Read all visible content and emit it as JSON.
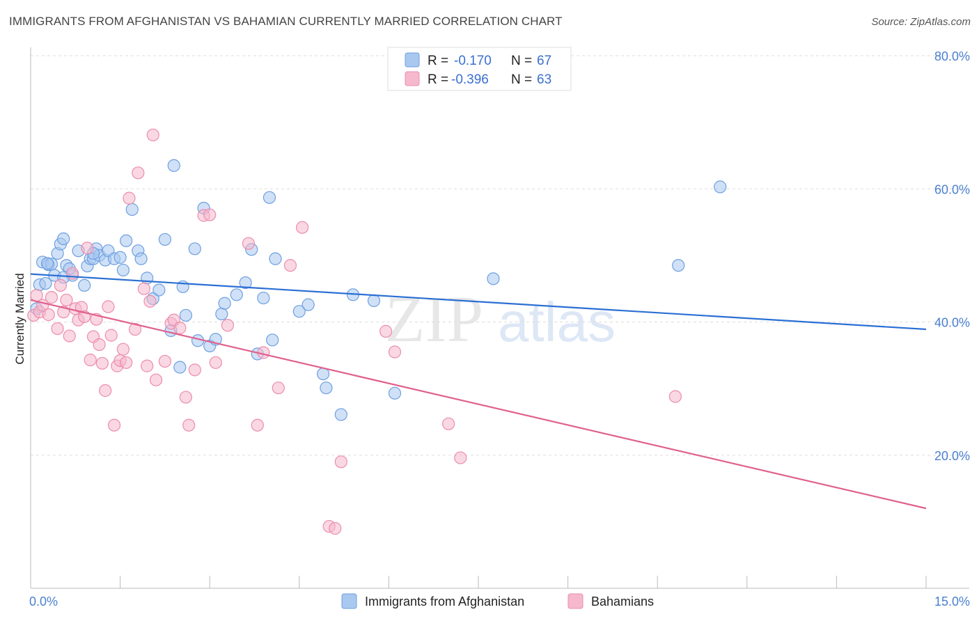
{
  "title": "IMMIGRANTS FROM AFGHANISTAN VS BAHAMIAN CURRENTLY MARRIED CORRELATION CHART",
  "source": "Source: ZipAtlas.com",
  "watermark": {
    "zip": "ZIP",
    "atlas": "atlas"
  },
  "colors": {
    "blue_fill": "#a9c8f0",
    "blue_stroke": "#6d9fe0",
    "blue_line": "#2b6fd4",
    "pink_fill": "#f6b8cc",
    "pink_stroke": "#ec8cab",
    "pink_line": "#e0608e",
    "tick_text": "#4a7fd0",
    "grid": "#dddddd"
  },
  "legend": {
    "rows": [
      {
        "r_label": "R = ",
        "r_value": "-0.170",
        "n_label": "N = ",
        "n_value": "67",
        "series": "blue"
      },
      {
        "r_label": "R = ",
        "r_value": "-0.396",
        "n_label": "N = ",
        "n_value": "63",
        "series": "pink"
      }
    ]
  },
  "chart_data": {
    "type": "scatter",
    "title": "IMMIGRANTS FROM AFGHANISTAN VS BAHAMIAN CURRENTLY MARRIED CORRELATION CHART",
    "xlabel": "",
    "ylabel": "Currently Married",
    "xlim": [
      0,
      15
    ],
    "ylim": [
      0,
      80
    ],
    "x_tick_labels": [
      {
        "value": 0,
        "label": "0.0%"
      },
      {
        "value": 15,
        "label": "15.0%"
      }
    ],
    "y_tick_labels": [
      {
        "value": 20,
        "label": "20.0%"
      },
      {
        "value": 40,
        "label": "40.0%"
      },
      {
        "value": 60,
        "label": "60.0%"
      },
      {
        "value": 80,
        "label": "80.0%"
      }
    ],
    "series": [
      {
        "name": "Immigrants from Afghanistan",
        "color": "blue",
        "trend": {
          "x0": 0,
          "y0": 47.2,
          "x1": 15,
          "y1": 38.9
        },
        "points": [
          [
            0.15,
            45.6
          ],
          [
            0.2,
            49.0
          ],
          [
            0.25,
            45.8
          ],
          [
            0.3,
            48.6
          ],
          [
            0.35,
            48.7
          ],
          [
            0.4,
            47.0
          ],
          [
            0.45,
            50.3
          ],
          [
            0.5,
            51.7
          ],
          [
            0.55,
            52.5
          ],
          [
            0.6,
            48.5
          ],
          [
            0.7,
            47.0
          ],
          [
            0.8,
            50.7
          ],
          [
            0.9,
            45.5
          ],
          [
            0.95,
            48.4
          ],
          [
            1.0,
            49.5
          ],
          [
            1.05,
            49.5
          ],
          [
            1.1,
            51.0
          ],
          [
            1.15,
            50.0
          ],
          [
            1.25,
            49.3
          ],
          [
            1.3,
            50.7
          ],
          [
            1.4,
            49.5
          ],
          [
            1.5,
            49.7
          ],
          [
            1.55,
            47.8
          ],
          [
            1.6,
            52.2
          ],
          [
            1.7,
            56.9
          ],
          [
            1.8,
            50.7
          ],
          [
            1.85,
            49.5
          ],
          [
            1.95,
            46.6
          ],
          [
            2.05,
            43.5
          ],
          [
            2.15,
            44.8
          ],
          [
            2.25,
            52.4
          ],
          [
            2.35,
            38.7
          ],
          [
            2.4,
            63.5
          ],
          [
            2.5,
            33.2
          ],
          [
            2.55,
            45.3
          ],
          [
            2.6,
            41.0
          ],
          [
            2.75,
            51.0
          ],
          [
            2.9,
            57.1
          ],
          [
            3.0,
            36.4
          ],
          [
            3.1,
            37.4
          ],
          [
            3.2,
            41.2
          ],
          [
            3.25,
            42.8
          ],
          [
            3.45,
            44.1
          ],
          [
            3.6,
            45.9
          ],
          [
            3.7,
            50.9
          ],
          [
            3.8,
            35.2
          ],
          [
            3.9,
            43.6
          ],
          [
            4.0,
            58.7
          ],
          [
            4.05,
            37.3
          ],
          [
            4.1,
            49.5
          ],
          [
            4.5,
            41.6
          ],
          [
            4.65,
            42.6
          ],
          [
            4.9,
            32.2
          ],
          [
            4.95,
            30.1
          ],
          [
            5.2,
            26.1
          ],
          [
            5.4,
            44.1
          ],
          [
            5.75,
            43.2
          ],
          [
            6.1,
            29.3
          ],
          [
            7.75,
            46.5
          ],
          [
            10.85,
            48.5
          ],
          [
            11.55,
            60.3
          ],
          [
            0.1,
            42.0
          ],
          [
            0.28,
            48.8
          ],
          [
            0.65,
            48.0
          ],
          [
            1.05,
            50.3
          ],
          [
            2.8,
            37.2
          ],
          [
            0.55,
            46.7
          ]
        ]
      },
      {
        "name": "Bahamians",
        "color": "pink",
        "trend": {
          "x0": 0,
          "y0": 43.3,
          "x1": 15,
          "y1": 12.0
        },
        "points": [
          [
            0.05,
            41.0
          ],
          [
            0.1,
            44.0
          ],
          [
            0.15,
            41.5
          ],
          [
            0.2,
            42.5
          ],
          [
            0.3,
            41.1
          ],
          [
            0.35,
            43.7
          ],
          [
            0.45,
            39.0
          ],
          [
            0.5,
            45.5
          ],
          [
            0.55,
            41.5
          ],
          [
            0.6,
            43.3
          ],
          [
            0.65,
            37.9
          ],
          [
            0.7,
            47.3
          ],
          [
            0.75,
            42.0
          ],
          [
            0.8,
            40.3
          ],
          [
            0.85,
            42.2
          ],
          [
            0.9,
            40.8
          ],
          [
            0.95,
            51.1
          ],
          [
            1.0,
            34.3
          ],
          [
            1.05,
            37.8
          ],
          [
            1.1,
            40.4
          ],
          [
            1.15,
            36.6
          ],
          [
            1.2,
            33.8
          ],
          [
            1.25,
            29.7
          ],
          [
            1.3,
            42.3
          ],
          [
            1.35,
            38.0
          ],
          [
            1.4,
            24.5
          ],
          [
            1.45,
            33.4
          ],
          [
            1.5,
            34.2
          ],
          [
            1.55,
            35.9
          ],
          [
            1.6,
            33.9
          ],
          [
            1.65,
            58.6
          ],
          [
            1.75,
            38.9
          ],
          [
            1.8,
            62.4
          ],
          [
            1.9,
            45.0
          ],
          [
            1.95,
            33.4
          ],
          [
            2.0,
            43.1
          ],
          [
            2.05,
            68.1
          ],
          [
            2.1,
            31.3
          ],
          [
            2.25,
            34.1
          ],
          [
            2.35,
            39.8
          ],
          [
            2.4,
            40.3
          ],
          [
            2.5,
            39.1
          ],
          [
            2.6,
            28.7
          ],
          [
            2.65,
            24.5
          ],
          [
            2.75,
            32.8
          ],
          [
            2.9,
            56.0
          ],
          [
            3.0,
            56.1
          ],
          [
            3.1,
            33.9
          ],
          [
            3.3,
            39.5
          ],
          [
            3.65,
            51.8
          ],
          [
            3.8,
            24.5
          ],
          [
            3.9,
            35.4
          ],
          [
            4.15,
            30.1
          ],
          [
            4.35,
            48.5
          ],
          [
            4.55,
            54.2
          ],
          [
            5.0,
            9.3
          ],
          [
            5.1,
            9.0
          ],
          [
            5.2,
            19.0
          ],
          [
            5.95,
            38.6
          ],
          [
            6.1,
            35.5
          ],
          [
            7.0,
            24.7
          ],
          [
            7.2,
            19.6
          ],
          [
            10.8,
            28.8
          ]
        ]
      }
    ],
    "legend": [
      "Immigrants from Afghanistan",
      "Bahamians"
    ]
  }
}
